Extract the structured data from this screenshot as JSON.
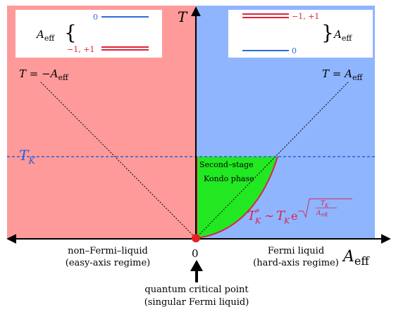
{
  "axes": {
    "y_label": "T",
    "x_label_main": "A",
    "x_label_sub": "eff",
    "origin_label": "0"
  },
  "lines": {
    "left_diag_lhs": "T = −A",
    "left_diag_sub": "eff",
    "right_diag_lhs": "T = A",
    "right_diag_sub": "eff",
    "tk_main": "T",
    "tk_sub": "K"
  },
  "regions": {
    "left": {
      "line1": "non–Fermi–liquid",
      "line2": "(easy-axis regime)",
      "color": "#ff9a9a"
    },
    "right": {
      "line1": "Fermi liquid",
      "line2": "(hard-axis regime)",
      "color": "#8fb5ff"
    },
    "kondo": {
      "line1": "Second–stage",
      "line2": "Kondo phase",
      "color": "#22e822"
    }
  },
  "formula": {
    "lhs_main": "T",
    "lhs_sup": "∗",
    "lhs_sub": "K",
    "rel": "∼",
    "rhs_main": "T",
    "rhs_sub": "K",
    "exp_base": "e",
    "exp_sign": "−",
    "frac_num": "T",
    "frac_num_sub": "K",
    "frac_den": "A",
    "frac_den_sub": "eff",
    "color": "#d4264a"
  },
  "critical_point": {
    "line1": "quantum critical point",
    "line2": "(singular Fermi liquid)"
  },
  "legend_left": {
    "label_main": "A",
    "label_sub": "eff",
    "upper_level": "0",
    "lower_level": "−1, +1"
  },
  "legend_right": {
    "label_main": "A",
    "label_sub": "eff",
    "upper_level": "−1, +1",
    "lower_level": "0"
  },
  "colors": {
    "level_zero": "#2b6cd6",
    "level_pm": "#e0233a",
    "tk_line": "#2b5ee0",
    "axis": "#000000",
    "critical_dot": "#e32222"
  }
}
